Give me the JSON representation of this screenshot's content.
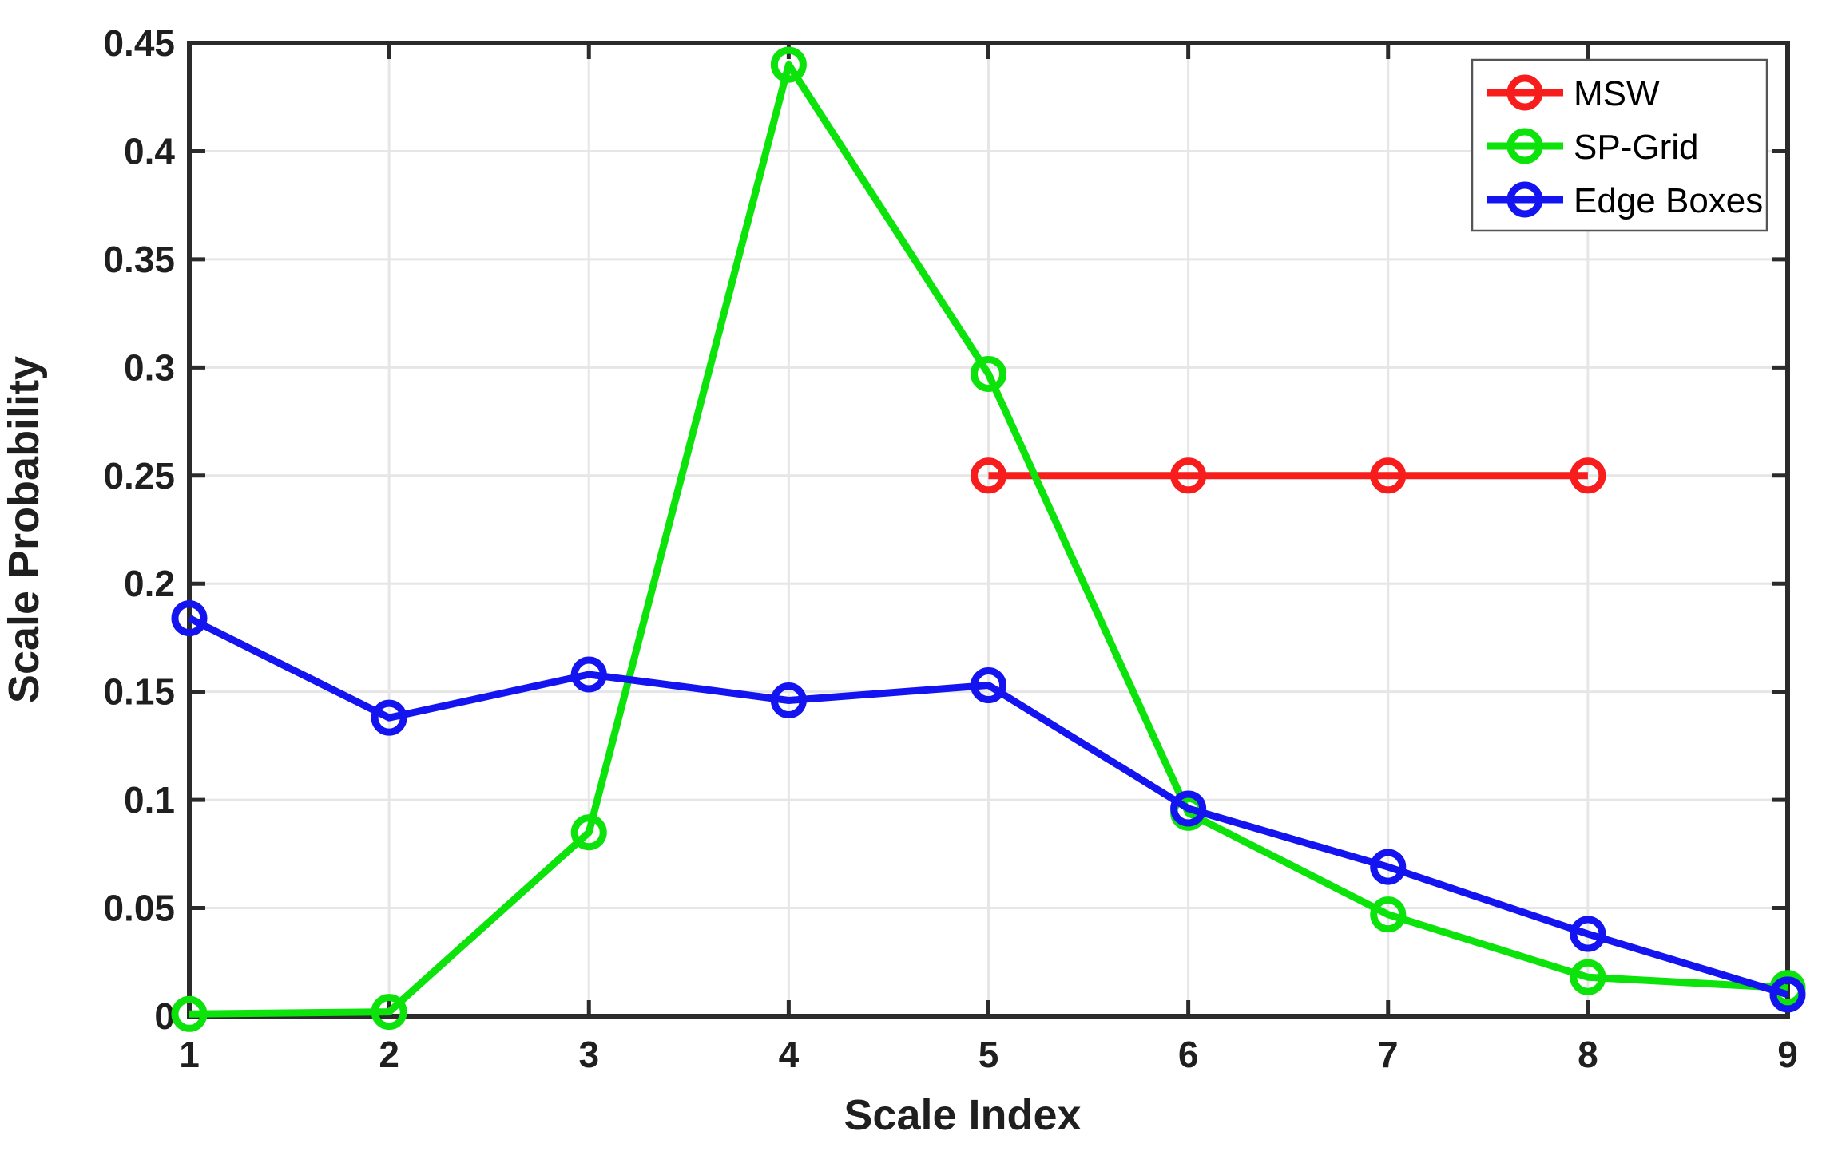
{
  "figure": {
    "background": "#ffffff",
    "plot_background": "#ffffff",
    "axis_color": "#2b2b2b",
    "grid_color": "#e6e6e6",
    "tick_label_color": "#1f1f1f",
    "label_color": "#1f1f1f"
  },
  "chart_data": {
    "type": "line",
    "title": "",
    "xlabel": "Scale Index",
    "ylabel": "Scale Probability",
    "xlim": [
      1,
      9
    ],
    "ylim": [
      0,
      0.45
    ],
    "grid": true,
    "x_ticks": [
      {
        "value": 1,
        "label": "1"
      },
      {
        "value": 2,
        "label": "2"
      },
      {
        "value": 3,
        "label": "3"
      },
      {
        "value": 4,
        "label": "4"
      },
      {
        "value": 5,
        "label": "5"
      },
      {
        "value": 6,
        "label": "6"
      },
      {
        "value": 7,
        "label": "7"
      },
      {
        "value": 8,
        "label": "8"
      },
      {
        "value": 9,
        "label": "9"
      }
    ],
    "y_ticks": [
      {
        "value": 0.0,
        "label": "0"
      },
      {
        "value": 0.05,
        "label": "0.05"
      },
      {
        "value": 0.1,
        "label": "0.1"
      },
      {
        "value": 0.15,
        "label": "0.15"
      },
      {
        "value": 0.2,
        "label": "0.2"
      },
      {
        "value": 0.25,
        "label": "0.25"
      },
      {
        "value": 0.3,
        "label": "0.3"
      },
      {
        "value": 0.35,
        "label": "0.35"
      },
      {
        "value": 0.4,
        "label": "0.4"
      },
      {
        "value": 0.45,
        "label": "0.45"
      }
    ],
    "legend": {
      "position": "top-right",
      "entries": [
        "MSW",
        "SP-Grid",
        "Edge Boxes"
      ]
    },
    "series": [
      {
        "name": "MSW",
        "color": "#f71d1d",
        "marker": "open-circle",
        "x": [
          5,
          6,
          7,
          8
        ],
        "y": [
          0.25,
          0.25,
          0.25,
          0.25
        ]
      },
      {
        "name": "SP-Grid",
        "color": "#0be30b",
        "marker": "open-circle",
        "x": [
          1,
          2,
          3,
          4,
          5,
          6,
          7,
          8,
          9
        ],
        "y": [
          0.001,
          0.002,
          0.085,
          0.44,
          0.297,
          0.094,
          0.047,
          0.018,
          0.013
        ]
      },
      {
        "name": "Edge Boxes",
        "color": "#1414f0",
        "marker": "open-circle",
        "x": [
          1,
          2,
          3,
          4,
          5,
          6,
          7,
          8,
          9
        ],
        "y": [
          0.184,
          0.138,
          0.158,
          0.146,
          0.153,
          0.096,
          0.069,
          0.038,
          0.01
        ]
      }
    ]
  }
}
